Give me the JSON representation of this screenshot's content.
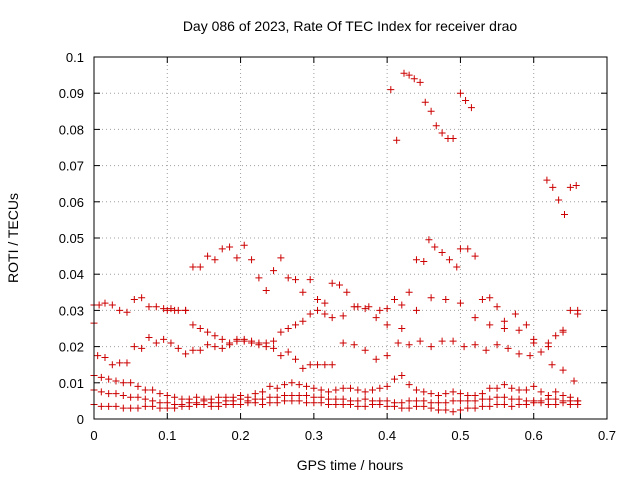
{
  "chart_data": {
    "type": "scatter",
    "title": "Day 086 of 2023, Rate Of TEC Index for receiver drao",
    "xlabel": "GPS time / hours",
    "ylabel": "ROTI / TECUs",
    "xlim": [
      0,
      0.7
    ],
    "ylim": [
      0,
      0.1
    ],
    "x_ticks": [
      "0",
      "0.1",
      "0.2",
      "0.3",
      "0.4",
      "0.5",
      "0.6",
      "0.7"
    ],
    "y_ticks": [
      "0",
      "0.01",
      "0.02",
      "0.03",
      "0.04",
      "0.05",
      "0.06",
      "0.07",
      "0.08",
      "0.09",
      "0.1"
    ],
    "grid": true,
    "marker": "plus",
    "color": "#cc0000",
    "series": [
      {
        "x": [
          0.405,
          0.413,
          0.423,
          0.43,
          0.437,
          0.445,
          0.452,
          0.46,
          0.467,
          0.475,
          0.483,
          0.49,
          0.5,
          0.507,
          0.515
        ],
        "y": [
          0.091,
          0.077,
          0.0955,
          0.095,
          0.094,
          0.093,
          0.0875,
          0.085,
          0.081,
          0.079,
          0.0775,
          0.0775,
          0.09,
          0.088,
          0.086
        ]
      },
      {
        "x": [
          0.618,
          0.626,
          0.634,
          0.642,
          0.65,
          0.658
        ],
        "y": [
          0.066,
          0.064,
          0.0605,
          0.0565,
          0.064,
          0.0645
        ]
      },
      {
        "x": [
          0.1,
          0.11,
          0.125,
          0.135,
          0.145,
          0.155,
          0.165,
          0.175,
          0.185,
          0.195,
          0.205,
          0.215,
          0.225,
          0.235,
          0.245,
          0.255,
          0.265,
          0.275,
          0.285,
          0.295,
          0.305,
          0.315,
          0.325,
          0.335,
          0.345,
          0.36,
          0.375,
          0.39,
          0.4,
          0.41,
          0.42,
          0.43,
          0.44,
          0.45,
          0.457,
          0.465,
          0.475,
          0.485,
          0.495,
          0.5,
          0.51,
          0.52,
          0.53,
          0.54,
          0.55,
          0.56,
          0.575,
          0.59,
          0.6,
          0.62,
          0.63,
          0.64,
          0.65,
          0.66
        ],
        "y": [
          0.03,
          0.03,
          0.03,
          0.042,
          0.042,
          0.045,
          0.044,
          0.047,
          0.0475,
          0.0445,
          0.048,
          0.044,
          0.039,
          0.0355,
          0.041,
          0.0445,
          0.039,
          0.0385,
          0.035,
          0.0385,
          0.033,
          0.032,
          0.0375,
          0.037,
          0.035,
          0.031,
          0.031,
          0.03,
          0.0305,
          0.033,
          0.0315,
          0.035,
          0.044,
          0.0435,
          0.0495,
          0.0475,
          0.046,
          0.044,
          0.042,
          0.047,
          0.047,
          0.045,
          0.033,
          0.0335,
          0.031,
          0.027,
          0.029,
          0.026,
          0.021,
          0.02,
          0.023,
          0.024,
          0.03,
          0.03
        ]
      },
      {
        "x": [
          0.0,
          0.007,
          0.015,
          0.025,
          0.035,
          0.045,
          0.055,
          0.065,
          0.075,
          0.085,
          0.095,
          0.105,
          0.115,
          0.125,
          0.135,
          0.145,
          0.155,
          0.165,
          0.175,
          0.185,
          0.195,
          0.205,
          0.215,
          0.225,
          0.235,
          0.245,
          0.255,
          0.265,
          0.275,
          0.285,
          0.295,
          0.305,
          0.315,
          0.325,
          0.34,
          0.355,
          0.37,
          0.385,
          0.4,
          0.42,
          0.44,
          0.46,
          0.48,
          0.5,
          0.52,
          0.54,
          0.56,
          0.58,
          0.6,
          0.62,
          0.64,
          0.66
        ],
        "y": [
          0.0315,
          0.0315,
          0.032,
          0.0315,
          0.03,
          0.0295,
          0.033,
          0.0335,
          0.031,
          0.031,
          0.0305,
          0.0305,
          0.03,
          0.03,
          0.026,
          0.025,
          0.024,
          0.023,
          0.022,
          0.021,
          0.022,
          0.0215,
          0.021,
          0.021,
          0.02,
          0.0215,
          0.024,
          0.025,
          0.026,
          0.027,
          0.029,
          0.03,
          0.029,
          0.028,
          0.0285,
          0.031,
          0.0305,
          0.028,
          0.026,
          0.025,
          0.03,
          0.0335,
          0.033,
          0.032,
          0.028,
          0.026,
          0.025,
          0.0245,
          0.022,
          0.021,
          0.0245,
          0.029
        ]
      },
      {
        "x": [
          0.0,
          0.005,
          0.015,
          0.025,
          0.035,
          0.045,
          0.055,
          0.065,
          0.075,
          0.085,
          0.095,
          0.105,
          0.115,
          0.125,
          0.135,
          0.145,
          0.155,
          0.165,
          0.175,
          0.185,
          0.195,
          0.205,
          0.215,
          0.225,
          0.235,
          0.245,
          0.255,
          0.265,
          0.275,
          0.285,
          0.295,
          0.305,
          0.315,
          0.325,
          0.34,
          0.355,
          0.37,
          0.385,
          0.4,
          0.415,
          0.43,
          0.445,
          0.46,
          0.475,
          0.49,
          0.505,
          0.52,
          0.535,
          0.55,
          0.565,
          0.58,
          0.595,
          0.61,
          0.625,
          0.64,
          0.655
        ],
        "y": [
          0.0265,
          0.0175,
          0.017,
          0.015,
          0.0155,
          0.0155,
          0.02,
          0.0195,
          0.0225,
          0.021,
          0.022,
          0.021,
          0.0195,
          0.018,
          0.019,
          0.019,
          0.0205,
          0.02,
          0.0195,
          0.0205,
          0.0215,
          0.022,
          0.0215,
          0.0205,
          0.021,
          0.0195,
          0.0175,
          0.0185,
          0.0165,
          0.014,
          0.015,
          0.015,
          0.015,
          0.015,
          0.021,
          0.0205,
          0.019,
          0.0165,
          0.0175,
          0.021,
          0.0205,
          0.0215,
          0.02,
          0.0215,
          0.0215,
          0.02,
          0.0205,
          0.019,
          0.0205,
          0.0195,
          0.018,
          0.0175,
          0.0185,
          0.015,
          0.0135,
          0.0105
        ]
      },
      {
        "x": [
          0.0,
          0.01,
          0.02,
          0.03,
          0.04,
          0.05,
          0.06,
          0.07,
          0.08,
          0.09,
          0.1,
          0.11,
          0.12,
          0.13,
          0.14,
          0.15,
          0.16,
          0.17,
          0.18,
          0.19,
          0.2,
          0.21,
          0.22,
          0.23,
          0.24,
          0.25,
          0.26,
          0.27,
          0.28,
          0.29,
          0.3,
          0.31,
          0.32,
          0.33,
          0.34,
          0.35,
          0.36,
          0.37,
          0.38,
          0.39,
          0.4,
          0.41,
          0.42,
          0.43,
          0.44,
          0.45,
          0.46,
          0.47,
          0.48,
          0.49,
          0.5,
          0.51,
          0.52,
          0.53,
          0.54,
          0.55,
          0.56,
          0.57,
          0.58,
          0.59,
          0.6,
          0.61,
          0.62,
          0.63,
          0.64,
          0.65,
          0.66
        ],
        "y": [
          0.012,
          0.0115,
          0.011,
          0.0105,
          0.01,
          0.01,
          0.009,
          0.008,
          0.008,
          0.007,
          0.0065,
          0.006,
          0.0055,
          0.0055,
          0.006,
          0.0055,
          0.0055,
          0.006,
          0.006,
          0.006,
          0.0065,
          0.006,
          0.007,
          0.0075,
          0.009,
          0.0085,
          0.0095,
          0.01,
          0.0095,
          0.009,
          0.0085,
          0.008,
          0.0075,
          0.008,
          0.0085,
          0.0085,
          0.008,
          0.0075,
          0.008,
          0.0085,
          0.009,
          0.011,
          0.012,
          0.0095,
          0.008,
          0.0075,
          0.007,
          0.0065,
          0.007,
          0.0075,
          0.007,
          0.0065,
          0.0065,
          0.007,
          0.0085,
          0.0085,
          0.0095,
          0.0085,
          0.008,
          0.008,
          0.009,
          0.0075,
          0.0065,
          0.0075,
          0.0065,
          0.006,
          0.005
        ]
      },
      {
        "x": [
          0.0,
          0.01,
          0.02,
          0.03,
          0.04,
          0.05,
          0.06,
          0.07,
          0.08,
          0.09,
          0.1,
          0.11,
          0.12,
          0.13,
          0.14,
          0.15,
          0.16,
          0.17,
          0.18,
          0.19,
          0.2,
          0.21,
          0.22,
          0.23,
          0.24,
          0.25,
          0.26,
          0.27,
          0.28,
          0.29,
          0.3,
          0.31,
          0.32,
          0.33,
          0.34,
          0.35,
          0.36,
          0.37,
          0.38,
          0.39,
          0.4,
          0.41,
          0.42,
          0.43,
          0.44,
          0.45,
          0.46,
          0.47,
          0.48,
          0.49,
          0.5,
          0.51,
          0.52,
          0.53,
          0.54,
          0.55,
          0.56,
          0.57,
          0.58,
          0.59,
          0.6,
          0.61,
          0.62,
          0.63,
          0.64,
          0.65,
          0.66
        ],
        "y": [
          0.008,
          0.0075,
          0.007,
          0.007,
          0.0065,
          0.006,
          0.006,
          0.0055,
          0.005,
          0.0045,
          0.0045,
          0.004,
          0.004,
          0.0045,
          0.0045,
          0.005,
          0.0045,
          0.0045,
          0.005,
          0.005,
          0.0055,
          0.005,
          0.0055,
          0.0055,
          0.006,
          0.006,
          0.0065,
          0.0065,
          0.0065,
          0.0065,
          0.006,
          0.006,
          0.0055,
          0.0055,
          0.0055,
          0.005,
          0.005,
          0.0055,
          0.005,
          0.005,
          0.005,
          0.0045,
          0.0045,
          0.005,
          0.005,
          0.005,
          0.0045,
          0.0045,
          0.0045,
          0.005,
          0.005,
          0.005,
          0.005,
          0.0055,
          0.0055,
          0.006,
          0.006,
          0.0055,
          0.0055,
          0.005,
          0.005,
          0.005,
          0.0055,
          0.0055,
          0.005,
          0.005,
          0.005
        ]
      },
      {
        "x": [
          0.0,
          0.01,
          0.02,
          0.03,
          0.04,
          0.05,
          0.06,
          0.07,
          0.08,
          0.09,
          0.1,
          0.11,
          0.12,
          0.13,
          0.14,
          0.15,
          0.16,
          0.17,
          0.18,
          0.19,
          0.2,
          0.21,
          0.22,
          0.23,
          0.24,
          0.25,
          0.26,
          0.27,
          0.28,
          0.29,
          0.3,
          0.31,
          0.32,
          0.33,
          0.34,
          0.35,
          0.36,
          0.37,
          0.38,
          0.39,
          0.4,
          0.41,
          0.42,
          0.43,
          0.44,
          0.45,
          0.46,
          0.47,
          0.48,
          0.49,
          0.5,
          0.51,
          0.52,
          0.53,
          0.54,
          0.55,
          0.56,
          0.57,
          0.58,
          0.59,
          0.6,
          0.61,
          0.62,
          0.63,
          0.64,
          0.65,
          0.66
        ],
        "y": [
          0.004,
          0.0035,
          0.0035,
          0.0035,
          0.003,
          0.003,
          0.003,
          0.0035,
          0.0035,
          0.003,
          0.003,
          0.003,
          0.0035,
          0.0035,
          0.004,
          0.004,
          0.0035,
          0.0035,
          0.004,
          0.004,
          0.004,
          0.0045,
          0.0045,
          0.004,
          0.0045,
          0.0045,
          0.005,
          0.005,
          0.005,
          0.0045,
          0.0045,
          0.0045,
          0.004,
          0.004,
          0.004,
          0.004,
          0.0035,
          0.0035,
          0.004,
          0.004,
          0.0035,
          0.0035,
          0.003,
          0.003,
          0.0035,
          0.0035,
          0.003,
          0.0025,
          0.0025,
          0.002,
          0.0025,
          0.003,
          0.003,
          0.0035,
          0.0035,
          0.004,
          0.004,
          0.0035,
          0.004,
          0.004,
          0.0045,
          0.0045,
          0.004,
          0.004,
          0.0045,
          0.004,
          0.004
        ]
      }
    ]
  }
}
